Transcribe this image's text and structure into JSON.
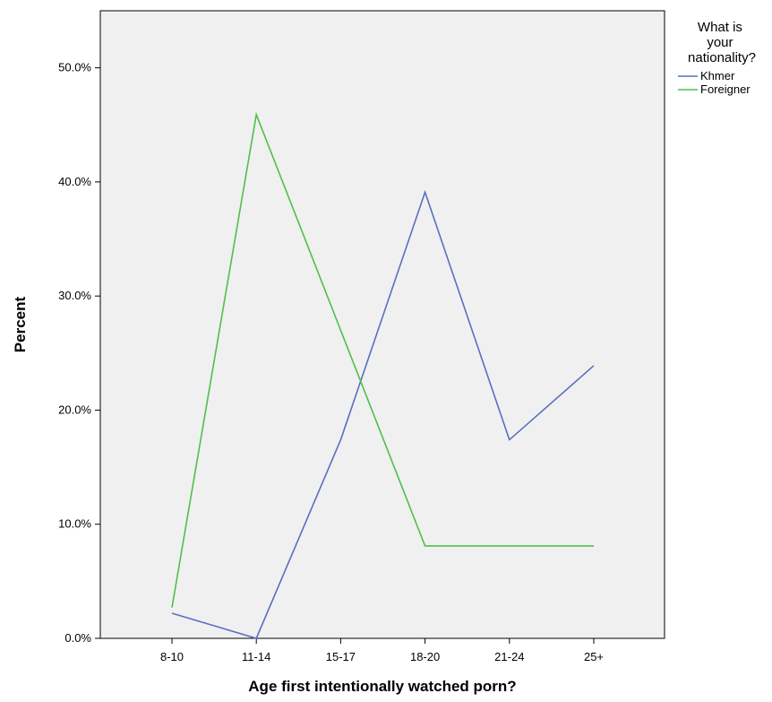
{
  "chart_data": {
    "type": "line",
    "title": "",
    "xlabel": "Age first intentionally watched porn?",
    "ylabel": "Percent",
    "categories": [
      "8-10",
      "11-14",
      "15-17",
      "18-20",
      "21-24",
      "25+"
    ],
    "ylim": [
      0,
      55
    ],
    "yticks": [
      0,
      10,
      20,
      30,
      40,
      50
    ],
    "ytick_labels": [
      "0.0%",
      "10.0%",
      "20.0%",
      "30.0%",
      "40.0%",
      "50.0%"
    ],
    "grid": false,
    "legend": {
      "title_lines": [
        "What is",
        "your",
        "nationality?"
      ],
      "placement": "top-right-outside"
    },
    "series": [
      {
        "name": "Khmer",
        "color": "#5a6fc0",
        "values": [
          2.2,
          0.0,
          17.4,
          39.1,
          17.4,
          23.9
        ]
      },
      {
        "name": "Foreigner",
        "color": "#4ec04a",
        "values": [
          2.7,
          45.9,
          27.0,
          8.1,
          8.1,
          8.1
        ]
      }
    ],
    "plot_background": "#f0f0f0"
  }
}
